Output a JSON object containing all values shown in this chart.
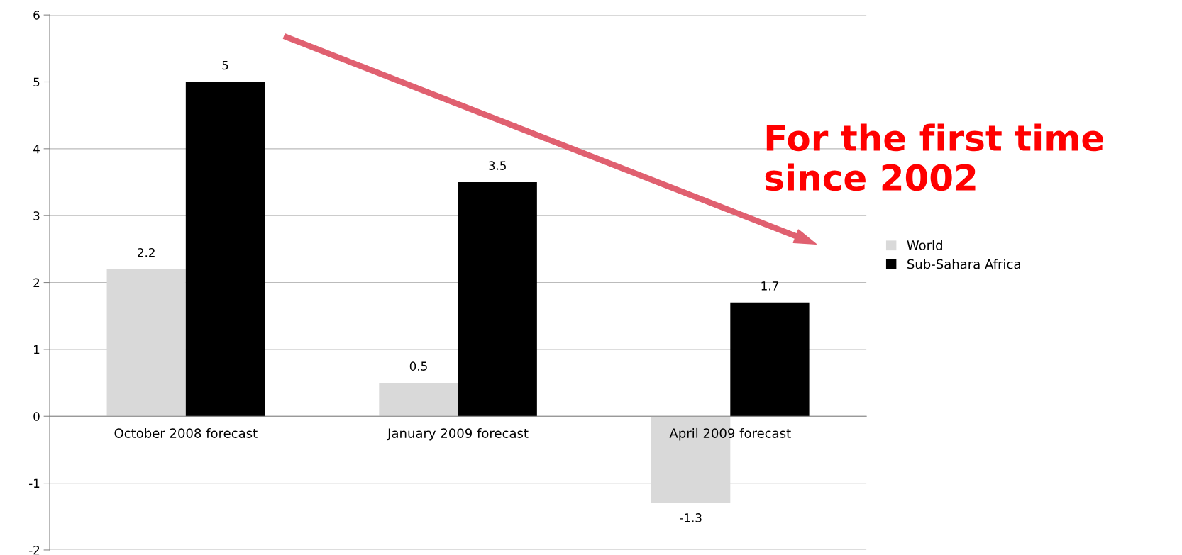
{
  "chart_data": {
    "type": "bar",
    "categories": [
      "October 2008 forecast",
      "January 2009 forecast",
      "April 2009 forecast"
    ],
    "series": [
      {
        "name": "World",
        "color": "#d9d9d9",
        "values": [
          2.2,
          0.5,
          -1.3
        ]
      },
      {
        "name": "Sub-Sahara Africa",
        "color": "#000000",
        "values": [
          5,
          3.5,
          1.7
        ]
      }
    ],
    "ylim": [
      -2,
      6
    ],
    "yticks": [
      -2,
      -1,
      0,
      1,
      2,
      3,
      4,
      5,
      6
    ],
    "grid": "y",
    "legend": "right",
    "data_labels": true,
    "annotations": [
      "For the first time since 2002"
    ]
  }
}
